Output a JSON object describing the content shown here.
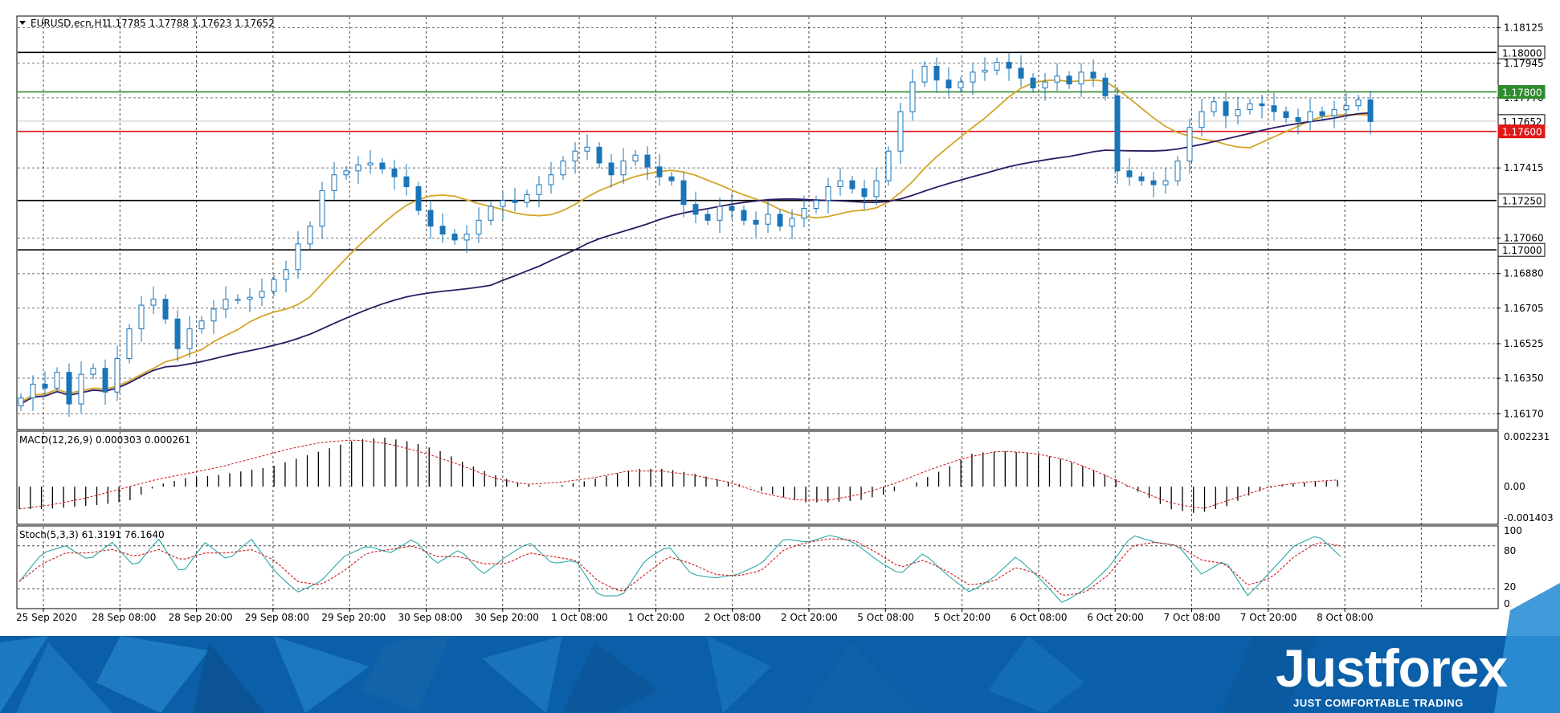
{
  "header": {
    "symbol": "EURUSD.ecn,H1",
    "ohlc": "1.17785 1.17788 1.17623 1.17652",
    "macd_label": "MACD(12,26,9) 0.000303 0.000261",
    "stoch_label": "Stoch(5,3,3) 61.3191 76.1640"
  },
  "brand": {
    "name": "Justforex",
    "tagline": "JUST COMFORTABLE TRADING",
    "color_dark": "#0a5fa8",
    "color_light": "#2c8fd6"
  },
  "colors": {
    "bull": "#ffffff",
    "bear": "#1a74b8",
    "candle_outline": "#1a74b8",
    "sma_fast": "#d4a528",
    "sma_slow": "#2e1a63",
    "level_green": "#2e8b2e",
    "level_red": "#e01818",
    "level_black": "#000000",
    "macd_signal": "#d01818",
    "stoch_main": "#2aa7a7",
    "stoch_signal": "#d01818"
  },
  "chart_data": {
    "type": "candlestick",
    "symbol": "EURUSD.ecn",
    "timeframe": "H1",
    "x_labels": [
      "25 Sep 2020",
      "28 Sep 08:00",
      "28 Sep 20:00",
      "29 Sep 08:00",
      "29 Sep 20:00",
      "30 Sep 08:00",
      "30 Sep 20:00",
      "1 Oct 08:00",
      "1 Oct 20:00",
      "2 Oct 08:00",
      "2 Oct 20:00",
      "5 Oct 08:00",
      "5 Oct 20:00",
      "6 Oct 08:00",
      "6 Oct 20:00",
      "7 Oct 08:00",
      "7 Oct 20:00",
      "8 Oct 08:00"
    ],
    "price_ticks": [
      "1.18125",
      "1.17945",
      "1.17770",
      "1.17415",
      "1.17060",
      "1.16880",
      "1.16705",
      "1.16525",
      "1.16350",
      "1.16170"
    ],
    "ylim": [
      1.1609,
      1.1818
    ],
    "close_path": [
      1.1625,
      1.1632,
      1.163,
      1.1638,
      1.1622,
      1.1637,
      1.164,
      1.1628,
      1.1645,
      1.166,
      1.1672,
      1.1675,
      1.1665,
      1.165,
      1.166,
      1.1664,
      1.167,
      1.1675,
      1.1675,
      1.1676,
      1.1679,
      1.1685,
      1.169,
      1.1703,
      1.1712,
      1.173,
      1.1738,
      1.174,
      1.1743,
      1.1744,
      1.1741,
      1.1737,
      1.1732,
      1.172,
      1.1712,
      1.1708,
      1.1705,
      1.1708,
      1.1715,
      1.1722,
      1.1725,
      1.1724,
      1.1728,
      1.1733,
      1.1738,
      1.1745,
      1.175,
      1.1752,
      1.1744,
      1.1738,
      1.1745,
      1.1748,
      1.1742,
      1.1737,
      1.1735,
      1.1723,
      1.1718,
      1.1715,
      1.1722,
      1.172,
      1.1715,
      1.1713,
      1.1718,
      1.1712,
      1.1716,
      1.1721,
      1.1725,
      1.1732,
      1.1735,
      1.1731,
      1.1727,
      1.1735,
      1.175,
      1.177,
      1.1785,
      1.1793,
      1.1786,
      1.1782,
      1.1785,
      1.179,
      1.1791,
      1.1795,
      1.1792,
      1.1787,
      1.1782,
      1.1785,
      1.1788,
      1.1784,
      1.179,
      1.1787,
      1.1778,
      1.174,
      1.1737,
      1.1735,
      1.1733,
      1.1735,
      1.1745,
      1.1762,
      1.177,
      1.1775,
      1.1768,
      1.1771,
      1.1774,
      1.1773,
      1.177,
      1.1767,
      1.1765,
      1.177,
      1.1768,
      1.1771,
      1.1773,
      1.1776,
      1.1765
    ],
    "levels": [
      {
        "price": 1.18,
        "label": "1.18000",
        "color": "#000000"
      },
      {
        "price": 1.178,
        "label": "1.17800",
        "color": "#2e8b2e"
      },
      {
        "price": 1.17652,
        "label": "1.17652",
        "color": "#c8c8c8"
      },
      {
        "price": 1.176,
        "label": "1.17600",
        "color": "#e01818"
      },
      {
        "price": 1.1725,
        "label": "1.17250",
        "color": "#000000"
      },
      {
        "price": 1.17,
        "label": "1.17000",
        "color": "#000000"
      }
    ],
    "macd": {
      "ticks": [
        "0.002231",
        "0.00",
        "-0.001403"
      ],
      "ylim": [
        -0.00165,
        0.00245
      ],
      "hist_path": [
        -0.001,
        -0.001,
        -0.0009,
        -0.0008,
        -0.0006,
        0.0001,
        0.0004,
        0.0005,
        0.0007,
        0.0009,
        0.0013,
        0.0017,
        0.0021,
        0.0022,
        0.002,
        0.0016,
        0.001,
        0.0005,
        0.0001,
        0.0,
        0.0002,
        0.0005,
        0.0008,
        0.0008,
        0.0006,
        0.0003,
        0.0,
        -0.0004,
        -0.0007,
        -0.0007,
        -0.0006,
        -0.0003,
        0.0002,
        0.0008,
        0.0015,
        0.0016,
        0.0015,
        0.0013,
        0.0009,
        0.0004,
        -0.0003,
        -0.001,
        -0.0012,
        -0.0009,
        -0.0003,
        0.0001,
        0.0002,
        0.0003
      ],
      "signal_path": [
        -0.001,
        -0.0008,
        -0.0005,
        -0.0001,
        0.0003,
        0.0006,
        0.0009,
        0.0013,
        0.0017,
        0.002,
        0.0021,
        0.0019,
        0.0015,
        0.001,
        0.0004,
        0.0001,
        0.0002,
        0.0004,
        0.0007,
        0.0007,
        0.0005,
        0.0002,
        -0.0003,
        -0.0006,
        -0.0006,
        -0.0003,
        0.0002,
        0.0008,
        0.0013,
        0.0016,
        0.0015,
        0.0012,
        0.0006,
        -0.0001,
        -0.0007,
        -0.001,
        -0.0005,
        0.0,
        0.0002,
        0.0003
      ]
    },
    "stochastic": {
      "ticks": [
        "100",
        "80",
        "20",
        "0"
      ],
      "ylim": [
        0,
        100
      ],
      "levels": [
        80,
        20
      ],
      "main_path": [
        30,
        70,
        80,
        60,
        85,
        50,
        90,
        40,
        85,
        60,
        90,
        45,
        15,
        30,
        65,
        80,
        70,
        90,
        55,
        75,
        40,
        65,
        85,
        55,
        60,
        10,
        10,
        60,
        80,
        40,
        35,
        40,
        55,
        90,
        85,
        95,
        85,
        60,
        40,
        70,
        40,
        15,
        35,
        65,
        35,
        0,
        20,
        50,
        95,
        85,
        80,
        40,
        60,
        10,
        45,
        80,
        95,
        65
      ],
      "signal_path": [
        30,
        55,
        70,
        70,
        75,
        65,
        75,
        60,
        70,
        70,
        75,
        60,
        30,
        25,
        45,
        70,
        75,
        80,
        65,
        65,
        55,
        55,
        70,
        65,
        60,
        30,
        15,
        40,
        65,
        55,
        40,
        38,
        45,
        75,
        85,
        90,
        88,
        70,
        50,
        60,
        45,
        25,
        30,
        50,
        40,
        10,
        15,
        40,
        80,
        85,
        80,
        60,
        55,
        25,
        35,
        65,
        85,
        80
      ]
    }
  }
}
